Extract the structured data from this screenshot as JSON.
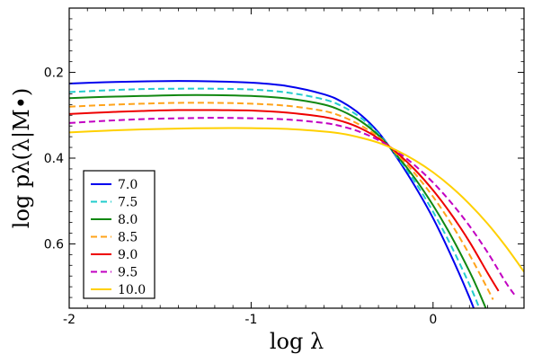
{
  "chart_data": {
    "type": "line",
    "title": "",
    "xlabel": "log λ",
    "ylabel": "log pλ(λ|M•)",
    "xlim": [
      -2.0,
      0.5
    ],
    "ylim": [
      0.75,
      0.05
    ],
    "y_inverted": true,
    "xticks": [
      -2,
      -1,
      0
    ],
    "xtick_labels": [
      "-2",
      "-1",
      "0"
    ],
    "yticks": [
      0.2,
      0.4,
      0.6
    ],
    "ytick_labels": [
      "0.2",
      "0.4",
      "0.6"
    ],
    "grid": false,
    "legend_position": "lower-left",
    "series": [
      {
        "name": "7.0",
        "color": "#0000ee",
        "dash": "solid",
        "x": [
          -2.0,
          -1.8,
          -1.6,
          -1.4,
          -1.2,
          -1.0,
          -0.8,
          -0.6,
          -0.5,
          -0.4,
          -0.3,
          -0.2,
          -0.1,
          0.0,
          0.1,
          0.2,
          0.25
        ],
        "y": [
          0.226,
          0.223,
          0.221,
          0.22,
          0.221,
          0.224,
          0.232,
          0.251,
          0.269,
          0.298,
          0.34,
          0.398,
          0.465,
          0.54,
          0.628,
          0.725,
          0.78
        ]
      },
      {
        "name": "7.5",
        "color": "#22cccc",
        "dash": "dashed",
        "x": [
          -2.0,
          -1.8,
          -1.6,
          -1.4,
          -1.2,
          -1.0,
          -0.8,
          -0.6,
          -0.5,
          -0.4,
          -0.3,
          -0.2,
          -0.1,
          0.0,
          0.1,
          0.2,
          0.25,
          0.27
        ],
        "y": [
          0.246,
          0.242,
          0.239,
          0.238,
          0.238,
          0.24,
          0.247,
          0.263,
          0.279,
          0.305,
          0.343,
          0.396,
          0.455,
          0.525,
          0.605,
          0.695,
          0.745,
          0.77
        ]
      },
      {
        "name": "8.0",
        "color": "#118811",
        "dash": "solid",
        "x": [
          -2.0,
          -1.8,
          -1.6,
          -1.4,
          -1.2,
          -1.0,
          -0.8,
          -0.6,
          -0.5,
          -0.4,
          -0.3,
          -0.2,
          -0.1,
          0.0,
          0.1,
          0.2,
          0.25,
          0.3
        ],
        "y": [
          0.26,
          0.257,
          0.255,
          0.253,
          0.253,
          0.255,
          0.261,
          0.275,
          0.29,
          0.313,
          0.347,
          0.393,
          0.447,
          0.51,
          0.582,
          0.664,
          0.71,
          0.76
        ]
      },
      {
        "name": "8.5",
        "color": "#ffa31a",
        "dash": "dashed",
        "x": [
          -2.0,
          -1.8,
          -1.6,
          -1.4,
          -1.2,
          -1.0,
          -0.8,
          -0.6,
          -0.5,
          -0.4,
          -0.3,
          -0.2,
          -0.1,
          0.0,
          0.1,
          0.2,
          0.3,
          0.33
        ],
        "y": [
          0.28,
          0.276,
          0.273,
          0.271,
          0.271,
          0.273,
          0.278,
          0.29,
          0.303,
          0.323,
          0.351,
          0.39,
          0.436,
          0.49,
          0.553,
          0.625,
          0.705,
          0.73
        ]
      },
      {
        "name": "9.0",
        "color": "#ee0000",
        "dash": "solid",
        "x": [
          -2.0,
          -1.8,
          -1.6,
          -1.4,
          -1.2,
          -1.0,
          -0.8,
          -0.6,
          -0.5,
          -0.4,
          -0.3,
          -0.2,
          -0.1,
          0.0,
          0.1,
          0.2,
          0.3,
          0.36
        ],
        "y": [
          0.297,
          0.293,
          0.29,
          0.288,
          0.288,
          0.289,
          0.294,
          0.304,
          0.314,
          0.33,
          0.354,
          0.387,
          0.427,
          0.475,
          0.531,
          0.595,
          0.668,
          0.71
        ]
      },
      {
        "name": "9.5",
        "color": "#c200c2",
        "dash": "dashed",
        "x": [
          -2.0,
          -1.8,
          -1.6,
          -1.4,
          -1.2,
          -1.0,
          -0.8,
          -0.6,
          -0.5,
          -0.4,
          -0.3,
          -0.2,
          -0.1,
          0.0,
          0.1,
          0.2,
          0.3,
          0.4,
          0.45
        ],
        "y": [
          0.318,
          0.313,
          0.309,
          0.307,
          0.306,
          0.307,
          0.31,
          0.318,
          0.326,
          0.339,
          0.358,
          0.384,
          0.417,
          0.457,
          0.504,
          0.558,
          0.62,
          0.69,
          0.72
        ]
      },
      {
        "name": "10.0",
        "color": "#ffd000",
        "dash": "solid",
        "x": [
          -2.0,
          -1.8,
          -1.6,
          -1.4,
          -1.2,
          -1.0,
          -0.8,
          -0.6,
          -0.5,
          -0.4,
          -0.3,
          -0.2,
          -0.1,
          0.0,
          0.1,
          0.2,
          0.3,
          0.4,
          0.5
        ],
        "y": [
          0.34,
          0.336,
          0.333,
          0.331,
          0.33,
          0.33,
          0.332,
          0.338,
          0.343,
          0.352,
          0.364,
          0.382,
          0.405,
          0.433,
          0.467,
          0.507,
          0.553,
          0.606,
          0.665
        ]
      }
    ]
  }
}
